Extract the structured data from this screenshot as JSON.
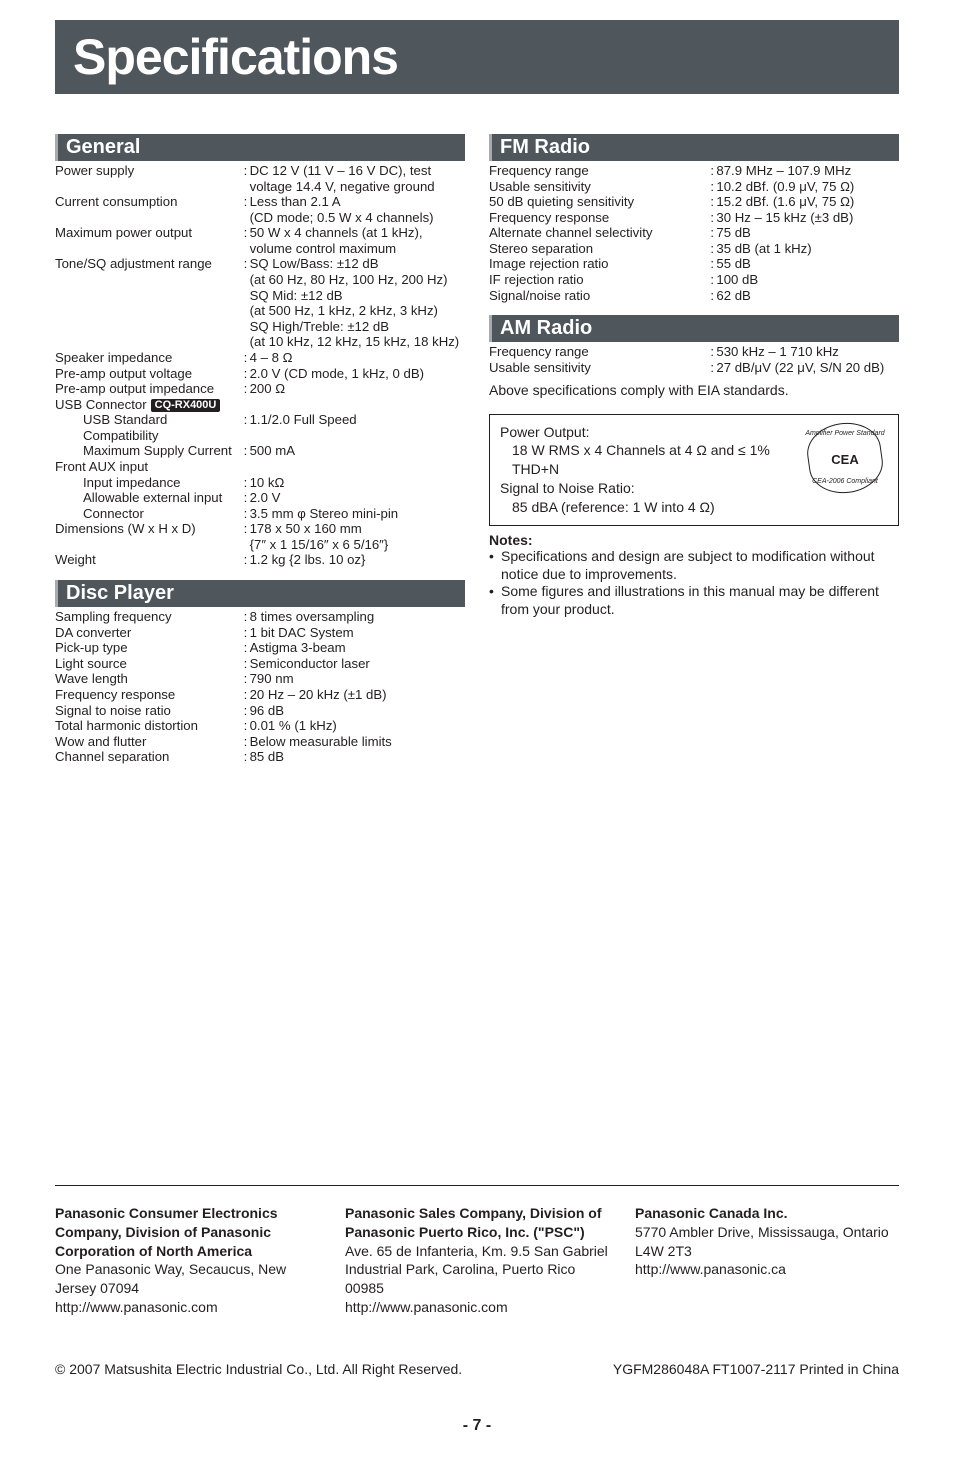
{
  "title": "Specifications",
  "sections": {
    "general": {
      "heading": "General",
      "rows": [
        {
          "label": "Power supply",
          "value": "DC 12 V (11 V – 16 V DC), test voltage 14.4 V, negative ground"
        },
        {
          "label": "Current consumption",
          "value": "Less than 2.1 A\n(CD mode; 0.5 W x 4 channels)"
        },
        {
          "label": "Maximum power output",
          "value": "50 W x 4 channels (at 1 kHz), volume control maximum"
        },
        {
          "label": "Tone/SQ adjustment range",
          "value": "SQ Low/Bass: ±12 dB\n(at 60 Hz, 80 Hz, 100 Hz, 200 Hz)\nSQ Mid: ±12 dB\n(at 500 Hz, 1 kHz, 2 kHz, 3 kHz)\nSQ High/Treble: ±12 dB\n(at 10 kHz, 12 kHz, 15 kHz, 18 kHz)"
        },
        {
          "label": "Speaker impedance",
          "value": "4 – 8 Ω"
        },
        {
          "label": "Pre-amp output voltage",
          "value": "2.0 V (CD mode, 1 kHz, 0 dB)"
        },
        {
          "label": "Pre-amp output impedance",
          "value": "200 Ω"
        }
      ],
      "usb_label": "USB Connector",
      "usb_badge": "CQ-RX400U",
      "usb_rows": [
        {
          "label": "USB Standard Compatibility",
          "value": "1.1/2.0 Full Speed"
        },
        {
          "label": "Maximum Supply Current",
          "value": "500 mA"
        }
      ],
      "aux_label": "Front AUX input",
      "aux_rows": [
        {
          "label": "Input impedance",
          "value": "10 kΩ"
        },
        {
          "label": "Allowable external input",
          "value": "2.0 V"
        },
        {
          "label": "Connector",
          "value": "3.5 mm φ Stereo mini-pin"
        }
      ],
      "tail_rows": [
        {
          "label": "Dimensions (W x H x D)",
          "value": "178 x 50 x 160 mm\n{7″ x 1 15/16″ x 6 5/16″}"
        },
        {
          "label": "Weight",
          "value": "1.2 kg {2 lbs. 10 oz}"
        }
      ]
    },
    "disc": {
      "heading": "Disc Player",
      "rows": [
        {
          "label": "Sampling frequency",
          "value": "8 times oversampling"
        },
        {
          "label": "DA converter",
          "value": "1 bit DAC System"
        },
        {
          "label": "Pick-up type",
          "value": "Astigma 3-beam"
        },
        {
          "label": "Light source",
          "value": "Semiconductor laser"
        },
        {
          "label": "Wave length",
          "value": "790 nm"
        },
        {
          "label": "Frequency response",
          "value": "20 Hz – 20 kHz (±1 dB)"
        },
        {
          "label": "Signal to noise ratio",
          "value": "96 dB"
        },
        {
          "label": "Total harmonic distortion",
          "value": "0.01 % (1 kHz)"
        },
        {
          "label": "Wow and flutter",
          "value": "Below measurable limits"
        },
        {
          "label": "Channel separation",
          "value": "85 dB"
        }
      ]
    },
    "fm": {
      "heading": "FM Radio",
      "rows": [
        {
          "label": "Frequency range",
          "value": "87.9 MHz – 107.9 MHz"
        },
        {
          "label": "Usable sensitivity",
          "value": "10.2 dBf. (0.9 μV, 75 Ω)"
        },
        {
          "label": "50 dB quieting sensitivity",
          "value": "15.2 dBf. (1.6 μV, 75 Ω)"
        },
        {
          "label": "Frequency response",
          "value": "30 Hz – 15 kHz (±3 dB)"
        },
        {
          "label": "Alternate channel selectivity",
          "value": "75 dB"
        },
        {
          "label": "Stereo separation",
          "value": "35 dB (at 1 kHz)"
        },
        {
          "label": "Image rejection ratio",
          "value": "55 dB"
        },
        {
          "label": "IF rejection ratio",
          "value": "100 dB"
        },
        {
          "label": "Signal/noise ratio",
          "value": "62 dB"
        }
      ]
    },
    "am": {
      "heading": "AM Radio",
      "rows": [
        {
          "label": "Frequency range",
          "value": "530 kHz – 1 710 kHz"
        },
        {
          "label": "Usable sensitivity",
          "value": "27 dB/μV (22 μV, S/N 20 dB)"
        }
      ]
    }
  },
  "eia_text": "Above specifications comply with EIA standards.",
  "compliance": {
    "l1": "Power Output:",
    "l2": "18 W RMS x 4 Channels at 4 Ω and ≤ 1% THD+N",
    "l3": "Signal to Noise Ratio:",
    "l4": "85 dBA (reference: 1 W into 4 Ω)",
    "badge_top": "Amplifier Power Standard",
    "badge_mid": "CEA",
    "badge_bot": "CEA-2006 Compliant"
  },
  "notes_heading": "Notes:",
  "notes": [
    "Specifications and design are subject to modification without notice due to improvements.",
    "Some figures and illustrations in this manual may be different from your product."
  ],
  "footer": {
    "col1": {
      "bold": "Panasonic Consumer Electronics Company, Division of Panasonic Corporation of North America",
      "rest": "One Panasonic Way, Secaucus, New Jersey 07094\nhttp://www.panasonic.com"
    },
    "col2": {
      "bold": "Panasonic Sales Company, Division of Panasonic Puerto Rico, Inc. (\"PSC\")",
      "rest": "Ave. 65 de Infanteria, Km. 9.5 San Gabriel Industrial Park, Carolina, Puerto Rico 00985\nhttp://www.panasonic.com"
    },
    "col3": {
      "bold": "Panasonic Canada Inc.",
      "rest": "5770 Ambler Drive, Mississauga, Ontario\nL4W 2T3\nhttp://www.panasonic.ca"
    }
  },
  "bottom": {
    "left": "© 2007 Matsushita Electric Industrial Co., Ltd. All Right Reserved.",
    "right": "YGFM286048A   FT1007-2117   Printed in China"
  },
  "page_number": "- 7 -"
}
